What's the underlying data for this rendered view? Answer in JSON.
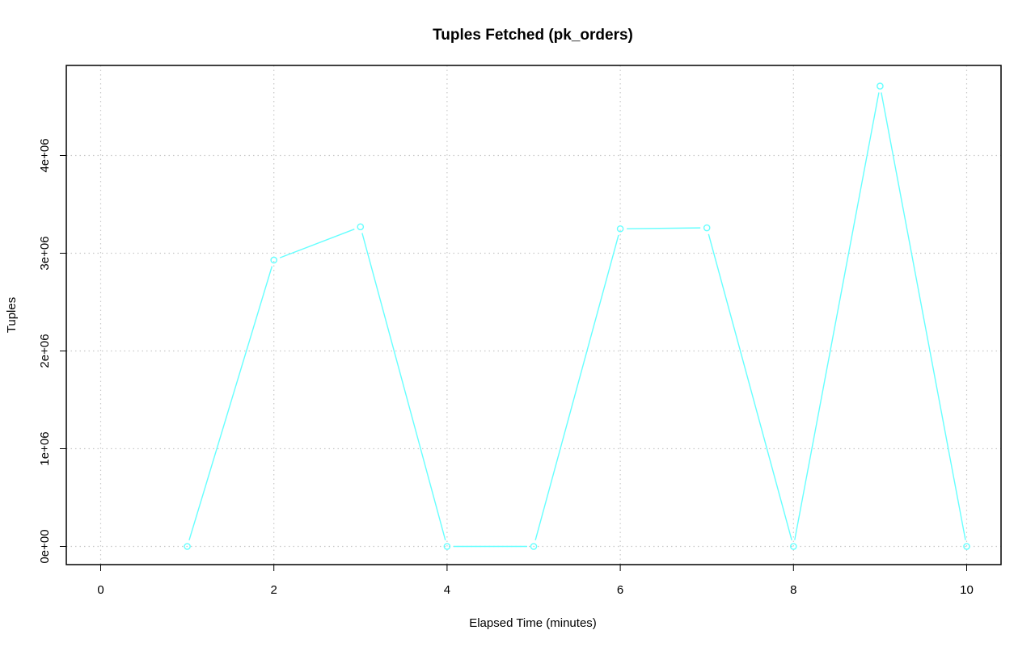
{
  "chart_data": {
    "type": "line",
    "title": "Tuples Fetched (pk_orders)",
    "xlabel": "Elapsed Time (minutes)",
    "ylabel": "Tuples",
    "xlim": [
      0,
      10
    ],
    "ylim": [
      0,
      4700000
    ],
    "x_ticks": [
      0,
      2,
      4,
      6,
      8,
      10
    ],
    "x_tick_labels": [
      "0",
      "2",
      "4",
      "6",
      "8",
      "10"
    ],
    "y_ticks": [
      0,
      1000000,
      2000000,
      3000000,
      4000000
    ],
    "y_tick_labels": [
      "0e+00",
      "1e+06",
      "2e+06",
      "3e+06",
      "4e+06"
    ],
    "grid": true,
    "series": [
      {
        "color": "#66ffff",
        "marker": "open-circle",
        "x": [
          1,
          2,
          3,
          4,
          5,
          6,
          7,
          8,
          9,
          10
        ],
        "y": [
          0,
          2930000,
          3270000,
          0,
          0,
          3250000,
          3260000,
          0,
          4710000,
          0
        ]
      }
    ]
  }
}
